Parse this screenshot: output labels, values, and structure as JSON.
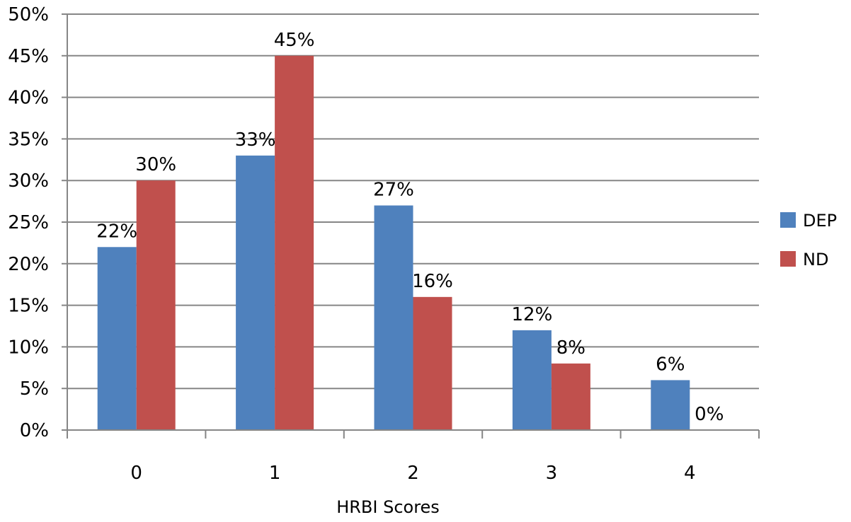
{
  "chart_data": {
    "type": "bar",
    "title": "",
    "xlabel": "HRBI Scores",
    "ylabel": "",
    "categories": [
      "0",
      "1",
      "2",
      "3",
      "4"
    ],
    "series": [
      {
        "name": "DEP",
        "color": "#4f81bd",
        "values": [
          22,
          33,
          27,
          12,
          6
        ],
        "labels": [
          "22%",
          "33%",
          "27%",
          "12%",
          "6%"
        ]
      },
      {
        "name": "ND",
        "color": "#c0504d",
        "values": [
          30,
          45,
          16,
          8,
          0
        ],
        "labels": [
          "30%",
          "45%",
          "16%",
          "8%",
          "0%"
        ]
      }
    ],
    "ylim": [
      0,
      50
    ],
    "yticks": [
      0,
      5,
      10,
      15,
      20,
      25,
      30,
      35,
      40,
      45,
      50
    ],
    "ytick_labels": [
      "0%",
      "5%",
      "10%",
      "15%",
      "20%",
      "25%",
      "30%",
      "35%",
      "40%",
      "45%",
      "50%"
    ],
    "grid": true,
    "gridline_color": "#868686",
    "legend_position": "right"
  }
}
